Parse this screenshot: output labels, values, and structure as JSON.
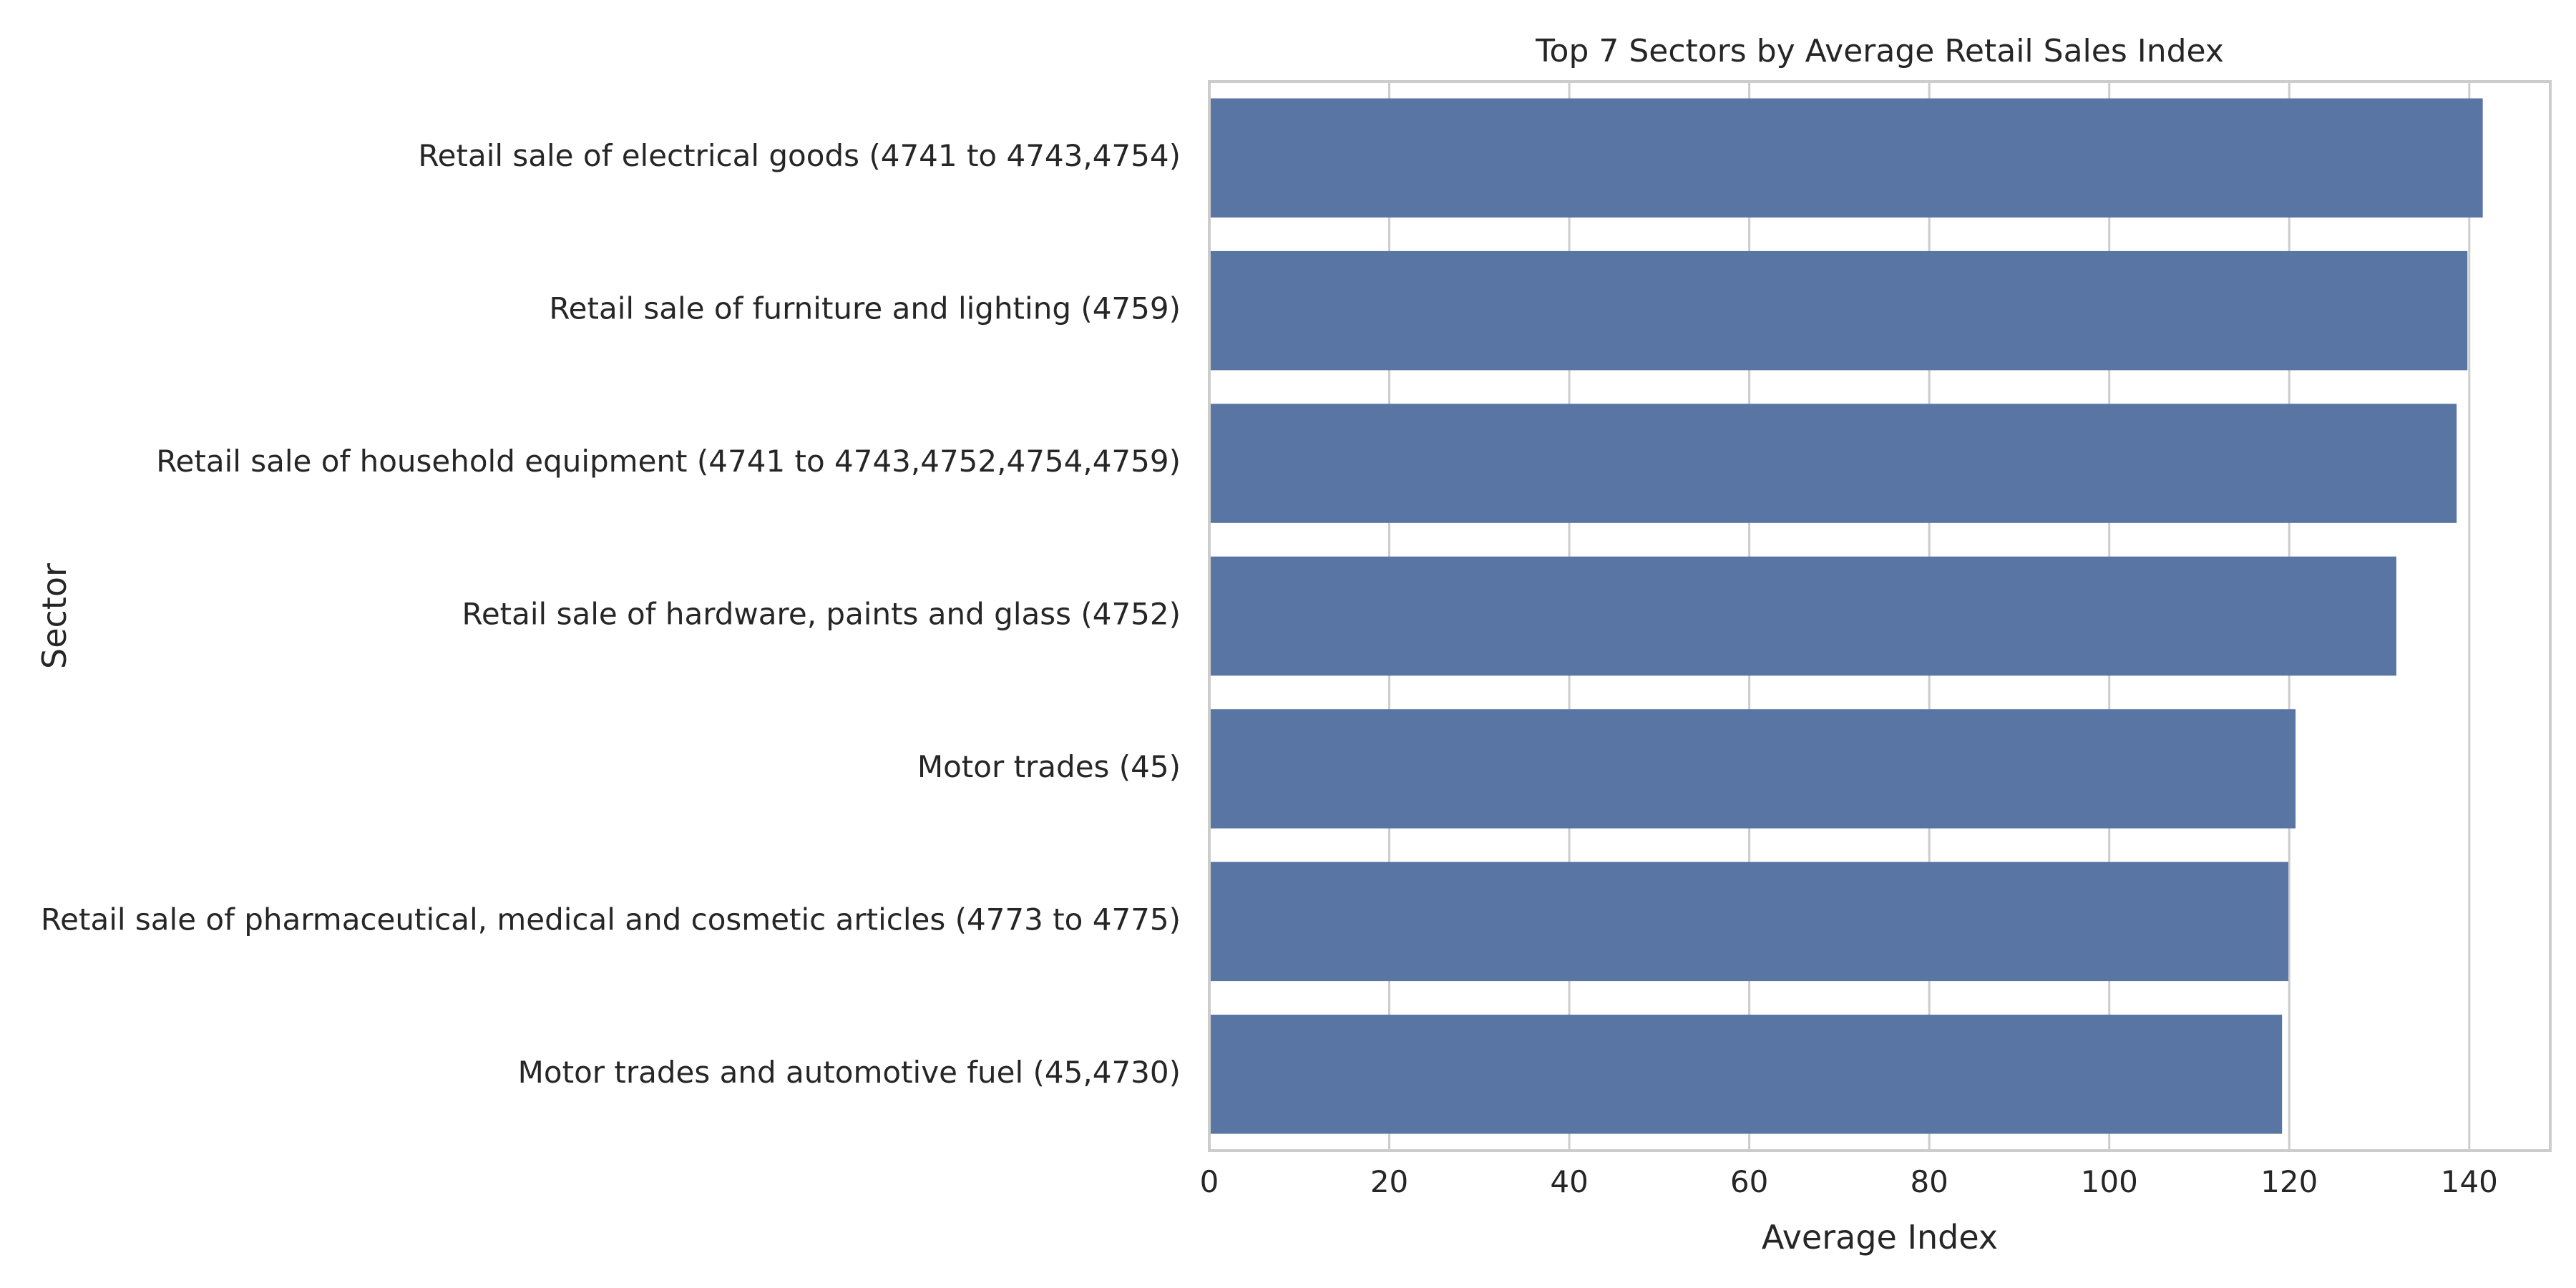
{
  "chart_data": {
    "type": "bar",
    "orientation": "horizontal",
    "title": "Top 7 Sectors by Average Retail Sales Index",
    "xlabel": "Average Index",
    "ylabel": "Sector",
    "categories": [
      "Retail sale of electrical goods (4741 to 4743,4754)",
      "Retail sale of furniture and lighting (4759)",
      "Retail sale of household equipment (4741 to 4743,4752,4754,4759)",
      "Retail sale of hardware, paints and glass (4752)",
      "Motor trades (45)",
      "Retail sale of pharmaceutical, medical and cosmetic articles (4773 to 4775)",
      "Motor trades and automotive fuel (45,4730)"
    ],
    "values": [
      141.5,
      139.8,
      138.6,
      131.9,
      120.7,
      119.9,
      119.2
    ],
    "xlim": [
      0,
      149
    ],
    "xticks": [
      0,
      20,
      40,
      60,
      80,
      100,
      120,
      140
    ],
    "grid": true,
    "colors": {
      "bar": "#5975a4",
      "grid": "#cccccc",
      "text": "#262626"
    }
  }
}
